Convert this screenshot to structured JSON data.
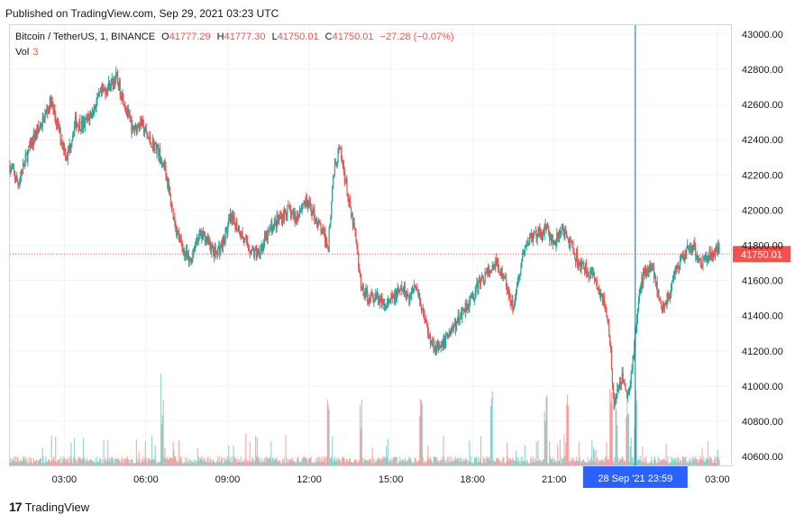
{
  "header": {
    "published": "Published on TradingView.com, Sep 29, 2021 03:23 UTC"
  },
  "legend": {
    "symbol": "Bitcoin / TetherUS, 1, BINANCE",
    "o_label": "O",
    "o": "41777.29",
    "h_label": "H",
    "h": "41777.30",
    "l_label": "L",
    "l": "41750.01",
    "c_label": "C",
    "c": "41750.01",
    "change": "−27.28 (−0.07%)",
    "vol_label": "Vol",
    "vol": "3"
  },
  "footer": {
    "brand": "TradingView"
  },
  "colors": {
    "up": "#26a69a",
    "down": "#ef5350",
    "crosshair": "#1e6b83",
    "grid": "#f0f3fa",
    "badge": "#2962ff"
  },
  "chart_data": {
    "type": "candlestick",
    "ylim": [
      40550,
      43050
    ],
    "y_ticks": [
      40600,
      40800,
      41000,
      41200,
      41400,
      41600,
      41800,
      42000,
      42200,
      42400,
      42600,
      42800,
      43000
    ],
    "y_tick_labels": [
      "40600.00",
      "40800.00",
      "41000.00",
      "41200.00",
      "41400.00",
      "41600.00",
      "41800.00",
      "42000.00",
      "42200.00",
      "42400.00",
      "42600.00",
      "42800.00",
      "43000.00"
    ],
    "x_ticks_hours": [
      3,
      6,
      9,
      12,
      15,
      18,
      21,
      27
    ],
    "x_tick_labels": [
      "03:00",
      "06:00",
      "09:00",
      "12:00",
      "15:00",
      "18:00",
      "21:00",
      "03:00"
    ],
    "x_range_hours": [
      1.0,
      27.5
    ],
    "last_price": 41750.01,
    "last_price_label": "41750.01",
    "crosshair_hours": 23.983,
    "crosshair_label": "28 Sep '21   23:59",
    "anchors": [
      [
        1.0,
        42250
      ],
      [
        1.3,
        42150
      ],
      [
        1.6,
        42300
      ],
      [
        1.9,
        42420
      ],
      [
        2.2,
        42500
      ],
      [
        2.5,
        42620
      ],
      [
        2.8,
        42450
      ],
      [
        3.1,
        42300
      ],
      [
        3.4,
        42500
      ],
      [
        3.7,
        42480
      ],
      [
        4.0,
        42550
      ],
      [
        4.3,
        42650
      ],
      [
        4.6,
        42700
      ],
      [
        4.9,
        42750
      ],
      [
        5.2,
        42620
      ],
      [
        5.5,
        42450
      ],
      [
        5.8,
        42500
      ],
      [
        6.1,
        42400
      ],
      [
        6.4,
        42350
      ],
      [
        6.7,
        42250
      ],
      [
        6.9,
        42050
      ],
      [
        7.1,
        41900
      ],
      [
        7.3,
        41800
      ],
      [
        7.6,
        41700
      ],
      [
        7.9,
        41850
      ],
      [
        8.2,
        41850
      ],
      [
        8.5,
        41750
      ],
      [
        8.8,
        41800
      ],
      [
        9.1,
        41950
      ],
      [
        9.4,
        41900
      ],
      [
        9.7,
        41800
      ],
      [
        10.0,
        41750
      ],
      [
        10.3,
        41800
      ],
      [
        10.6,
        41900
      ],
      [
        10.9,
        41950
      ],
      [
        11.2,
        42000
      ],
      [
        11.5,
        41950
      ],
      [
        11.8,
        42050
      ],
      [
        12.1,
        42000
      ],
      [
        12.4,
        41900
      ],
      [
        12.7,
        41800
      ],
      [
        12.9,
        42200
      ],
      [
        13.1,
        42350
      ],
      [
        13.3,
        42200
      ],
      [
        13.5,
        42000
      ],
      [
        13.7,
        41850
      ],
      [
        13.9,
        41550
      ],
      [
        14.2,
        41500
      ],
      [
        14.5,
        41500
      ],
      [
        14.8,
        41450
      ],
      [
        15.1,
        41500
      ],
      [
        15.4,
        41550
      ],
      [
        15.7,
        41500
      ],
      [
        15.9,
        41600
      ],
      [
        16.2,
        41400
      ],
      [
        16.5,
        41250
      ],
      [
        16.8,
        41200
      ],
      [
        17.1,
        41300
      ],
      [
        17.4,
        41350
      ],
      [
        17.7,
        41450
      ],
      [
        18.0,
        41500
      ],
      [
        18.3,
        41600
      ],
      [
        18.6,
        41650
      ],
      [
        18.9,
        41700
      ],
      [
        19.2,
        41600
      ],
      [
        19.5,
        41450
      ],
      [
        19.8,
        41700
      ],
      [
        20.1,
        41850
      ],
      [
        20.4,
        41850
      ],
      [
        20.7,
        41900
      ],
      [
        21.0,
        41800
      ],
      [
        21.3,
        41900
      ],
      [
        21.6,
        41800
      ],
      [
        21.9,
        41700
      ],
      [
        22.2,
        41650
      ],
      [
        22.5,
        41600
      ],
      [
        22.8,
        41500
      ],
      [
        23.0,
        41350
      ],
      [
        23.2,
        40900
      ],
      [
        23.5,
        41050
      ],
      [
        23.7,
        40950
      ],
      [
        23.9,
        41150
      ],
      [
        24.1,
        41500
      ],
      [
        24.3,
        41650
      ],
      [
        24.6,
        41700
      ],
      [
        24.9,
        41450
      ],
      [
        25.2,
        41500
      ],
      [
        25.5,
        41650
      ],
      [
        25.8,
        41750
      ],
      [
        26.1,
        41800
      ],
      [
        26.4,
        41700
      ],
      [
        26.7,
        41750
      ],
      [
        27.0,
        41780
      ],
      [
        27.1,
        41750
      ]
    ],
    "volume_spikes_hours": [
      6.6,
      12.7,
      13.9,
      16.1,
      18.7,
      20.7,
      21.5,
      23.1,
      23.3,
      23.7,
      24.0
    ]
  }
}
